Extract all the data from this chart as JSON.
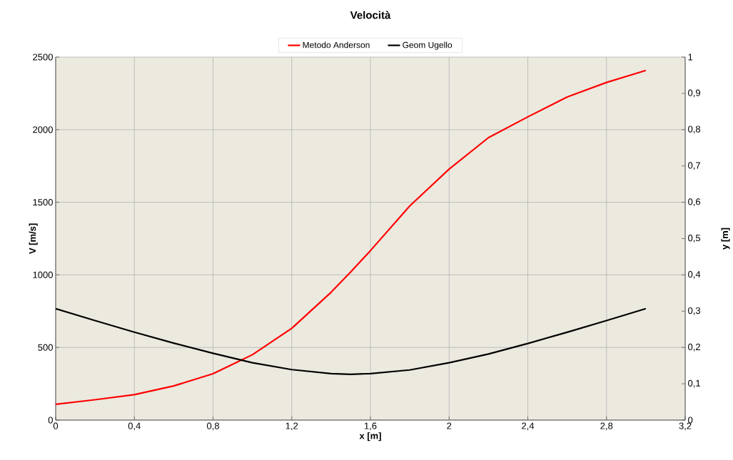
{
  "chart_data": {
    "type": "line",
    "title": "Velocità",
    "xlabel": "x [m]",
    "ylabel": "V [m/s]",
    "y2label": "y [m]",
    "legend": "top",
    "grid": true,
    "marker": "none",
    "line_style": "solid",
    "xlim": [
      0,
      3.2
    ],
    "ylim": [
      0,
      2500
    ],
    "y2lim": [
      0,
      1
    ],
    "xticks": [
      0,
      {
        "value": 0.4,
        "label": "0,4"
      },
      {
        "value": 0.8,
        "label": "0,8"
      },
      {
        "value": 1.2,
        "label": "1,2"
      },
      {
        "value": 1.6,
        "label": "1,6"
      },
      2,
      {
        "value": 2.4,
        "label": "2,4"
      },
      {
        "value": 2.8,
        "label": "2,8"
      },
      {
        "value": 3.2,
        "label": "3,2"
      }
    ],
    "yticks": [
      0,
      500,
      1000,
      1500,
      2000,
      2500
    ],
    "y2ticks": [
      0,
      {
        "value": 0.1,
        "label": "0,1"
      },
      {
        "value": 0.2,
        "label": "0,2"
      },
      {
        "value": 0.3,
        "label": "0,3"
      },
      {
        "value": 0.4,
        "label": "0,4"
      },
      {
        "value": 0.5,
        "label": "0,5"
      },
      {
        "value": 0.6,
        "label": "0,6"
      },
      {
        "value": 0.7,
        "label": "0,7"
      },
      {
        "value": 0.8,
        "label": "0,8"
      },
      {
        "value": 0.9,
        "label": "0,9"
      },
      1
    ],
    "x": [
      0,
      0.2,
      0.4,
      0.6,
      0.8,
      1.0,
      1.2,
      1.4,
      1.5,
      1.6,
      1.8,
      2.0,
      2.2,
      2.4,
      2.6,
      2.8,
      3.0
    ],
    "series": [
      {
        "name": "Metodo Anderson",
        "color": "#ff0000",
        "values": [
          109,
          140,
          175,
          235,
          319,
          450,
          632,
          880,
          1020,
          1167,
          1475,
          1728,
          1945,
          2088,
          2225,
          2325,
          2408
        ]
      },
      {
        "name": "Geom Ugello",
        "color": "#000000",
        "axis": "y2",
        "values": [
          0.307,
          0.274,
          0.242,
          0.212,
          0.184,
          0.158,
          0.139,
          0.128,
          0.126,
          0.128,
          0.138,
          0.158,
          0.182,
          0.211,
          0.242,
          0.274,
          0.307
        ]
      }
    ]
  }
}
